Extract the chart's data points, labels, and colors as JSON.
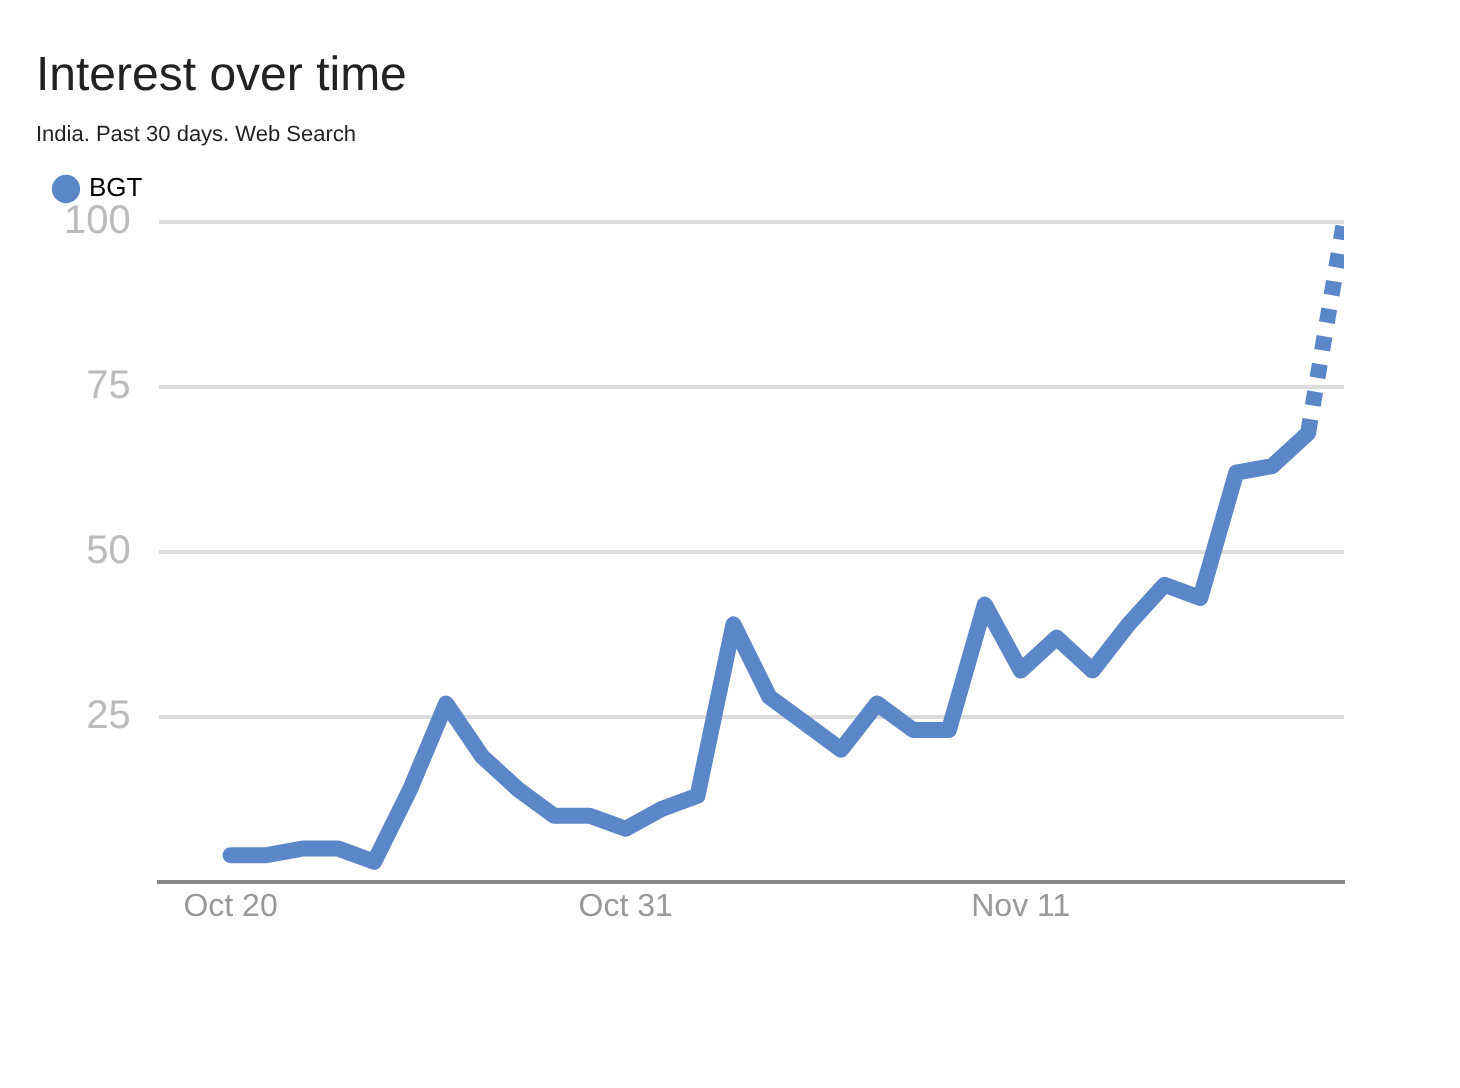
{
  "chart_data": {
    "type": "line",
    "title": "Interest over time",
    "subtitle": "India. Past 30 days. Web Search",
    "x": [
      "--10-20",
      "--10-21",
      "--10-22",
      "--10-23",
      "--10-24",
      "--10-25",
      "--10-26",
      "--10-27",
      "--10-28",
      "--10-29",
      "--10-30",
      "--10-31",
      "--11-01",
      "--11-02",
      "--11-03",
      "--11-04",
      "--11-05",
      "--11-06",
      "--11-07",
      "--11-08",
      "--11-09",
      "--11-10",
      "--11-11",
      "--11-12",
      "--11-13",
      "--11-14",
      "--11-15",
      "--11-16",
      "--11-17",
      "--11-18",
      "--11-19",
      "--11-20"
    ],
    "series": [
      {
        "name": "BGT",
        "color": "#5b87c8",
        "line_style": "solid",
        "values": [
          4,
          4,
          5,
          5,
          3,
          14,
          27,
          19,
          14,
          10,
          10,
          8,
          11,
          13,
          39,
          28,
          24,
          20,
          27,
          23,
          23,
          42,
          32,
          37,
          32,
          39,
          45,
          43,
          62,
          63,
          68,
          null
        ]
      },
      {
        "color": "#5b87c8",
        "line_style": "dotted",
        "values": [
          null,
          null,
          null,
          null,
          null,
          null,
          null,
          null,
          null,
          null,
          null,
          null,
          null,
          null,
          null,
          null,
          null,
          null,
          null,
          null,
          null,
          null,
          null,
          null,
          null,
          null,
          null,
          null,
          null,
          null,
          68,
          100
        ]
      }
    ],
    "xlim": [
      "--10-18",
      "--11-20"
    ],
    "xticks": [
      {
        "value": "--10-20",
        "label": "Oct 20"
      },
      {
        "value": "--10-31",
        "label": "Oct 31"
      },
      {
        "value": "--11-11",
        "label": "Nov 11"
      }
    ],
    "ylim": [
      0,
      100
    ],
    "yticks": [
      25,
      50,
      75,
      100
    ],
    "grid": "y",
    "legend": "top left",
    "marker": "none"
  }
}
